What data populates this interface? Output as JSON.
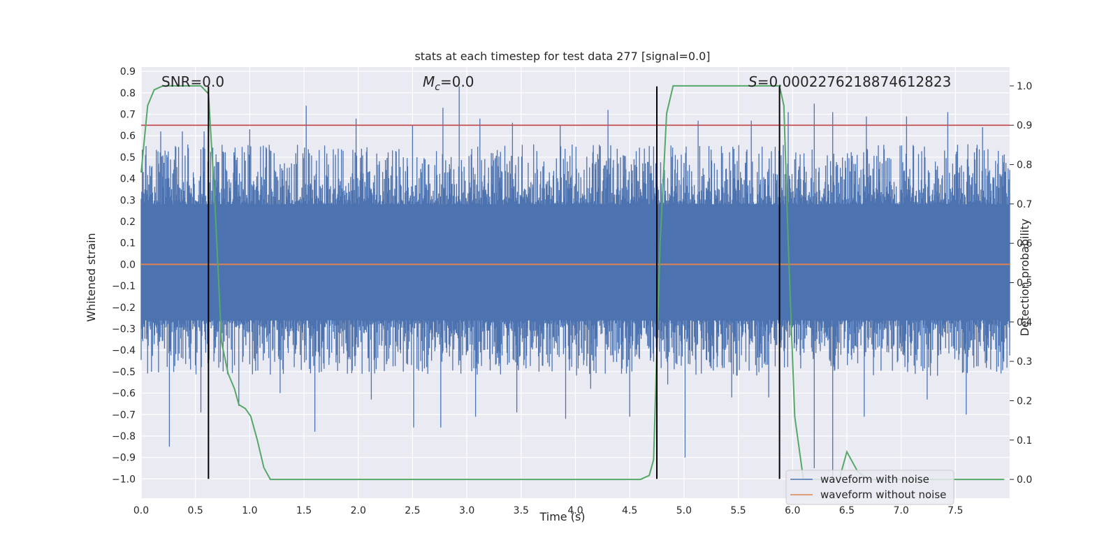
{
  "chart_data": {
    "type": "line",
    "title": "stats at each timestep for test data 277 [signal=0.0]",
    "xlabel": "Time (s)",
    "ylabel": "Whitened strain",
    "y2label": "Detection probability",
    "xlim": [
      0.0,
      8.0
    ],
    "ylim": [
      -1.09,
      0.92
    ],
    "y2lim": [
      -0.0478,
      1.0478
    ],
    "x_ticks": [
      0.0,
      0.5,
      1.0,
      1.5,
      2.0,
      2.5,
      3.0,
      3.5,
      4.0,
      4.5,
      5.0,
      5.5,
      6.0,
      6.5,
      7.0,
      7.5
    ],
    "x_tick_labels": [
      "0.0",
      "0.5",
      "1.0",
      "1.5",
      "2.0",
      "2.5",
      "3.0",
      "3.5",
      "4.0",
      "4.5",
      "5.0",
      "5.5",
      "6.0",
      "6.5",
      "7.0",
      "7.5"
    ],
    "y_ticks": [
      0.9,
      0.8,
      0.7,
      0.6,
      0.5,
      0.4,
      0.3,
      0.2,
      0.1,
      0.0,
      -0.1,
      -0.2,
      -0.3,
      -0.4,
      -0.5,
      -0.6,
      -0.7,
      -0.8,
      -0.9,
      -1.0
    ],
    "y_tick_labels": [
      "0.9",
      "0.8",
      "0.7",
      "0.6",
      "0.5",
      "0.4",
      "0.3",
      "0.2",
      "0.1",
      "0.0",
      "−0.1",
      "−0.2",
      "−0.3",
      "−0.4",
      "−0.5",
      "−0.6",
      "−0.7",
      "−0.8",
      "−0.9",
      "−1.0"
    ],
    "y2_ticks": [
      1.0,
      0.9,
      0.8,
      0.7,
      0.6,
      0.5,
      0.4,
      0.3,
      0.2,
      0.1,
      0.0
    ],
    "y2_tick_labels": [
      "1.0",
      "0.9",
      "0.8",
      "0.7",
      "0.6",
      "0.5",
      "0.4",
      "0.3",
      "0.2",
      "0.1",
      "0.0"
    ],
    "grid": true,
    "legend_position": "lower-right",
    "annotations": {
      "snr": "SNR=0.0",
      "mc": "M_c=0.0",
      "s": "S=0.0002276218874612823"
    },
    "series": [
      {
        "name": "waveform with noise",
        "axis": "left",
        "color": "#4c72b0",
        "style": "dense noise, envelope approx ±0.35 with spikes up to 0.83 and down to -1.0",
        "spike_peaks_x": [
          0.18,
          0.38,
          0.58,
          1.0,
          1.52,
          1.98,
          2.5,
          2.78,
          2.93,
          3.12,
          3.42,
          3.86,
          4.3,
          4.72,
          5.13,
          5.62,
          5.96,
          6.2,
          6.37,
          6.68,
          7.05,
          7.43,
          7.75
        ],
        "spike_peaks_y": [
          0.62,
          0.62,
          0.62,
          0.63,
          0.74,
          0.68,
          0.65,
          0.73,
          0.83,
          0.68,
          0.66,
          0.65,
          0.72,
          0.55,
          0.67,
          0.67,
          0.71,
          0.75,
          0.71,
          0.69,
          0.69,
          0.71,
          0.64
        ],
        "spike_troughs_x": [
          0.26,
          0.55,
          0.9,
          1.28,
          1.6,
          2.12,
          2.51,
          2.76,
          3.08,
          3.46,
          3.91,
          4.14,
          4.5,
          4.85,
          5.01,
          5.44,
          5.78,
          6.2,
          6.37,
          6.66,
          7.24,
          7.6,
          7.88
        ],
        "spike_troughs_y": [
          -0.85,
          -0.69,
          -0.66,
          -0.6,
          -0.78,
          -0.63,
          -0.76,
          -0.76,
          -0.71,
          -0.69,
          -0.72,
          -0.58,
          -0.71,
          -0.56,
          -0.9,
          -0.62,
          -0.62,
          -0.95,
          -1.0,
          -0.71,
          -0.63,
          -0.7,
          -0.5
        ]
      },
      {
        "name": "waveform without noise",
        "axis": "left",
        "color": "#dd8452",
        "x": [
          0.0,
          8.0
        ],
        "y": [
          0.0,
          0.0
        ]
      },
      {
        "name": "Detection probability",
        "axis": "right",
        "color": "#55a868",
        "x": [
          0.0,
          0.06,
          0.12,
          0.2,
          0.3,
          0.42,
          0.55,
          0.62,
          0.68,
          0.74,
          0.8,
          0.86,
          0.9,
          0.96,
          1.01,
          1.07,
          1.13,
          1.19,
          1.26,
          1.5,
          2.0,
          2.5,
          3.0,
          3.5,
          3.8,
          3.95,
          4.1,
          4.4,
          4.6,
          4.68,
          4.72,
          4.78,
          4.84,
          4.9,
          5.0,
          5.5,
          5.8,
          5.88,
          5.92,
          5.96,
          6.02,
          6.1,
          6.3,
          6.35,
          6.43,
          6.5,
          6.6,
          6.7,
          7.0,
          7.5,
          7.95
        ],
        "y": [
          0.78,
          0.95,
          0.99,
          1.0,
          1.0,
          1.0,
          1.0,
          0.98,
          0.7,
          0.35,
          0.27,
          0.23,
          0.19,
          0.18,
          0.16,
          0.1,
          0.03,
          0.0,
          0.0,
          0.0,
          0.0,
          0.0,
          0.0,
          0.0,
          0.0,
          0.0,
          0.0,
          0.0,
          0.0,
          0.01,
          0.05,
          0.6,
          0.93,
          1.0,
          1.0,
          1.0,
          1.0,
          1.0,
          0.95,
          0.6,
          0.16,
          0.0,
          0.0,
          0.0,
          0.0,
          0.07,
          0.02,
          0.0,
          0.0,
          0.0,
          0.0
        ]
      },
      {
        "name": "threshold",
        "axis": "right",
        "color": "#c44e52",
        "x": [
          0.0,
          8.0
        ],
        "y": [
          0.9,
          0.9
        ]
      }
    ],
    "vertical_markers_x": [
      0.62,
      4.75,
      5.88
    ],
    "vertical_markers_y_range": [
      -1.0,
      0.83
    ]
  }
}
